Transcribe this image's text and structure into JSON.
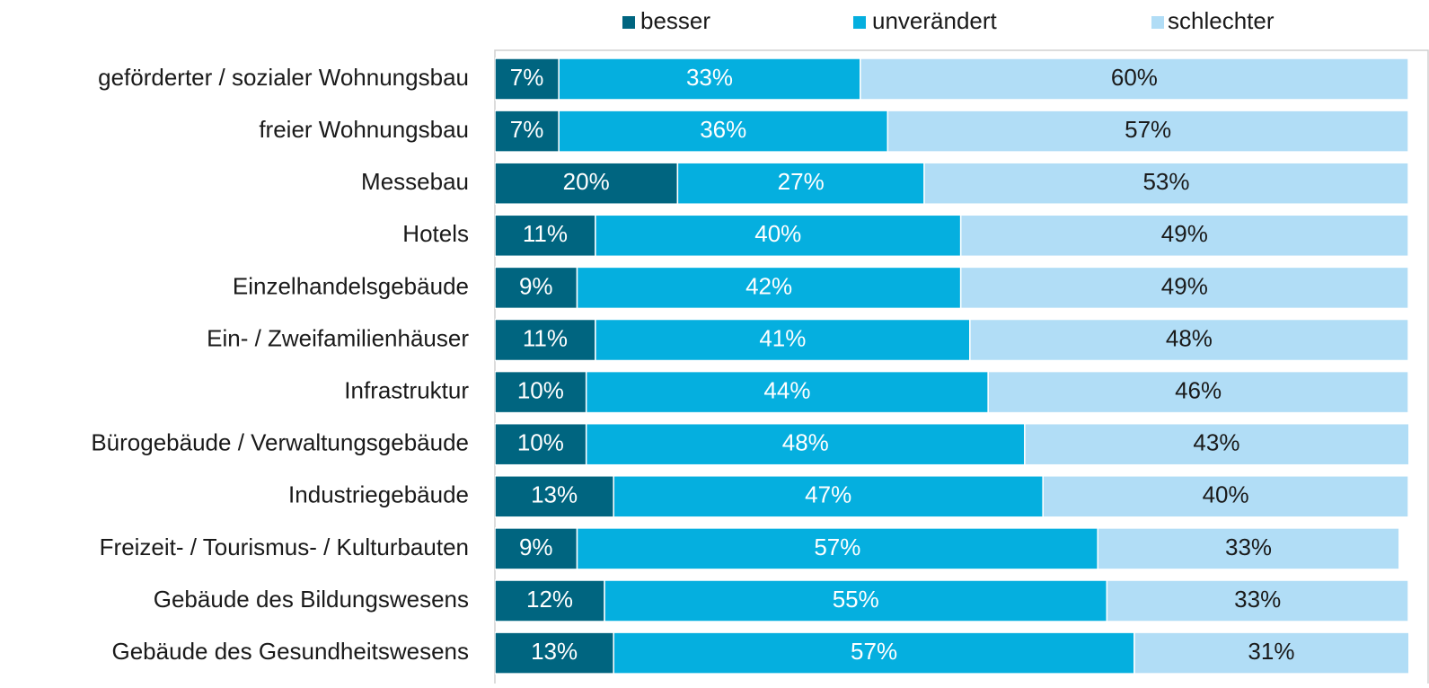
{
  "chart_data": {
    "type": "stacked-bar-horizontal",
    "categories": [
      "geförderter / sozialer Wohnungsbau",
      "freier Wohnungsbau",
      "Messebau",
      "Hotels",
      "Einzelhandelsgebäude",
      "Ein- / Zweifamilienhäuser",
      "Infrastruktur",
      "Bürogebäude / Verwaltungsgebäude",
      "Industriegebäude",
      "Freizeit- / Tourismus- / Kulturbauten",
      "Gebäude des Bildungswesens",
      "Gebäude des Gesundheitswesens"
    ],
    "series": [
      {
        "name": "besser",
        "color": "#006580",
        "label_color": "#ffffff",
        "values": [
          7,
          7,
          20,
          11,
          9,
          11,
          10,
          10,
          13,
          9,
          12,
          13
        ],
        "value_labels": [
          "7%",
          "7%",
          "20%",
          "11%",
          "9%",
          "11%",
          "10%",
          "10%",
          "13%",
          "9%",
          "12%",
          "13%"
        ]
      },
      {
        "name": "unverändert",
        "color": "#05afdf",
        "label_color": "#ffffff",
        "values": [
          33,
          36,
          27,
          40,
          42,
          41,
          44,
          48,
          47,
          57,
          55,
          57
        ],
        "value_labels": [
          "33%",
          "36%",
          "27%",
          "40%",
          "42%",
          "41%",
          "44%",
          "48%",
          "47%",
          "57%",
          "55%",
          "57%"
        ]
      },
      {
        "name": "schlechter",
        "color": "#b1ddf6",
        "label_color": "#1a1a1a",
        "values": [
          60,
          57,
          53,
          49,
          49,
          48,
          46,
          43,
          40,
          33,
          33,
          31
        ],
        "value_labels": [
          "60%",
          "57%",
          "53%",
          "49%",
          "49%",
          "48%",
          "46%",
          "43%",
          "40%",
          "33%",
          "33%",
          "31%"
        ]
      }
    ],
    "xlim": [
      0,
      100
    ],
    "legend": "top"
  }
}
